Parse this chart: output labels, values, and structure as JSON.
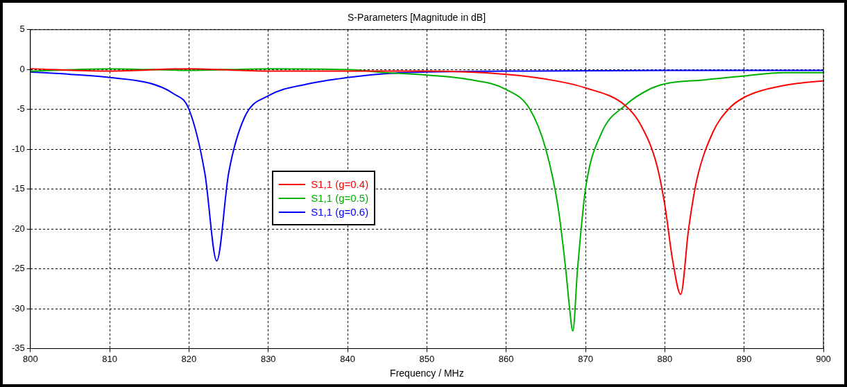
{
  "chart_data": {
    "type": "line",
    "title": "S-Parameters [Magnitude in dB]",
    "xlabel": "Frequency / MHz",
    "xlim": [
      800,
      900
    ],
    "xticks": [
      800,
      810,
      820,
      830,
      840,
      850,
      860,
      870,
      880,
      890,
      900
    ],
    "ylim": [
      -35,
      5
    ],
    "yticks": [
      5,
      0,
      -5,
      -10,
      -15,
      -20,
      -25,
      -30,
      -35
    ],
    "grid": true,
    "legend": "center",
    "line_style": "solid",
    "marker": "none",
    "series": [
      {
        "name": "S1,1 (g=0.4)",
        "color": "#ff0000",
        "x": [
          800,
          810,
          820,
          830,
          840,
          850,
          860,
          865,
          870,
          875,
          877,
          879,
          880,
          881,
          882,
          883,
          884,
          886,
          888,
          890,
          895,
          900
        ],
        "values": [
          0.1,
          -0.2,
          0.1,
          -0.2,
          -0.2,
          -0.2,
          -0.6,
          -1.2,
          -2.3,
          -4.5,
          -7,
          -12,
          -17,
          -24,
          -28.2,
          -20,
          -14,
          -8,
          -5,
          -3.5,
          -2,
          -1.4
        ]
      },
      {
        "name": "S1,1 (g=0.5)",
        "color": "#00b000",
        "x": [
          800,
          810,
          820,
          830,
          840,
          845,
          850,
          855,
          860,
          863,
          865,
          866.5,
          867.5,
          868,
          868.4,
          869,
          870,
          872,
          875,
          878,
          880,
          885,
          890,
          895,
          900
        ],
        "values": [
          -0.2,
          0.1,
          -0.1,
          0.1,
          0,
          -0.4,
          -0.7,
          -1.2,
          -2.5,
          -5,
          -10,
          -17,
          -25,
          -30,
          -32.8,
          -25,
          -15,
          -8,
          -4.5,
          -2.5,
          -1.8,
          -1.3,
          -0.8,
          -0.4,
          -0.4
        ]
      },
      {
        "name": "S1,1 (g=0.6)",
        "color": "#0000ff",
        "x": [
          800,
          805,
          810,
          815,
          818,
          820,
          822,
          823.5,
          825,
          827,
          830,
          835,
          840,
          845,
          850,
          860,
          880,
          900
        ],
        "values": [
          -0.3,
          -0.6,
          -1,
          -1.7,
          -3,
          -5,
          -13,
          -24,
          -13,
          -6,
          -3.3,
          -1.8,
          -1,
          -0.5,
          -0.3,
          -0.2,
          -0.1,
          -0.1
        ]
      }
    ]
  }
}
